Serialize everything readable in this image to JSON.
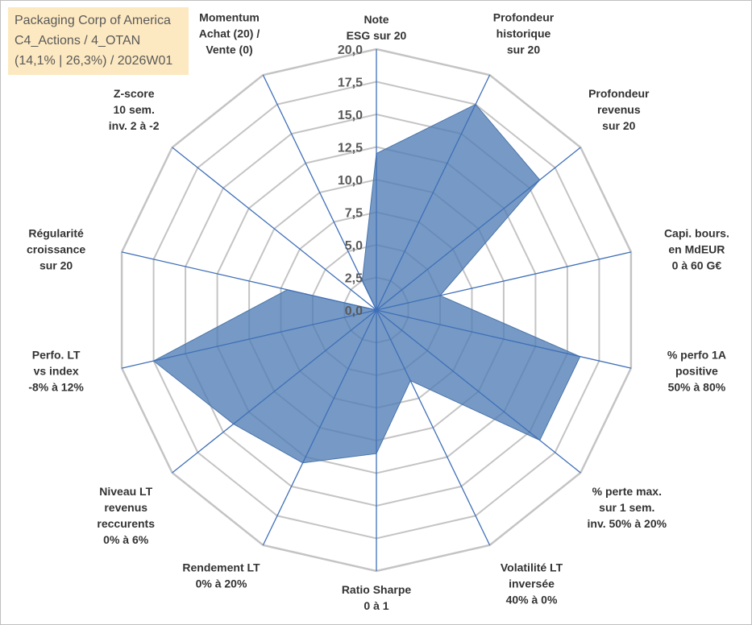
{
  "title_box": {
    "line1": "Packaging Corp of America",
    "line2": "C4_Actions / 4_OTAN",
    "line3": "(14,1% | 26,3%) / 2026W01"
  },
  "colors": {
    "fill": "#4f7db5",
    "axis_line": "#3f6fb8",
    "grid": "#c4c4c4"
  },
  "chart_data": {
    "type": "radar",
    "rlim": [
      0,
      20
    ],
    "ticks": [
      "0,0",
      "2,5",
      "5,0",
      "7,5",
      "10,0",
      "12,5",
      "15,0",
      "17,5",
      "20,0"
    ],
    "grid": true,
    "axes": [
      {
        "label": [
          "Note",
          "ESG sur 20"
        ]
      },
      {
        "label": [
          "Profondeur",
          "historique",
          "sur 20"
        ]
      },
      {
        "label": [
          "Profondeur",
          "revenus",
          "sur 20"
        ]
      },
      {
        "label": [
          "Capi. bours.",
          "en MdEUR",
          "0 à 60 G€"
        ]
      },
      {
        "label": [
          "% perfo 1A",
          "positive",
          "50% à 80%"
        ]
      },
      {
        "label": [
          "% perte max.",
          "sur 1 sem.",
          "inv. 50% à 20%"
        ]
      },
      {
        "label": [
          "Volatilité LT",
          "inversée",
          "40% à 0%"
        ]
      },
      {
        "label": [
          "Ratio Sharpe",
          "0 à 1"
        ]
      },
      {
        "label": [
          "Rendement LT",
          "0% à 20%"
        ]
      },
      {
        "label": [
          "Niveau LT",
          "revenus",
          "reccurents",
          "0% à 6%"
        ]
      },
      {
        "label": [
          "Perfo. LT",
          "vs index",
          "-8% à 12%"
        ]
      },
      {
        "label": [
          "Régularité",
          "croissance",
          "sur 20"
        ]
      },
      {
        "label": [
          "Z-score",
          "10 sem.",
          "inv. 2 à -2"
        ]
      },
      {
        "label": [
          "Momentum",
          "Achat (20) /",
          "Vente (0)"
        ]
      }
    ],
    "series": [
      {
        "values": [
          12,
          17.5,
          16,
          5,
          16,
          16,
          6,
          11,
          13,
          14,
          17.5,
          7,
          0,
          2.5
        ]
      }
    ]
  }
}
